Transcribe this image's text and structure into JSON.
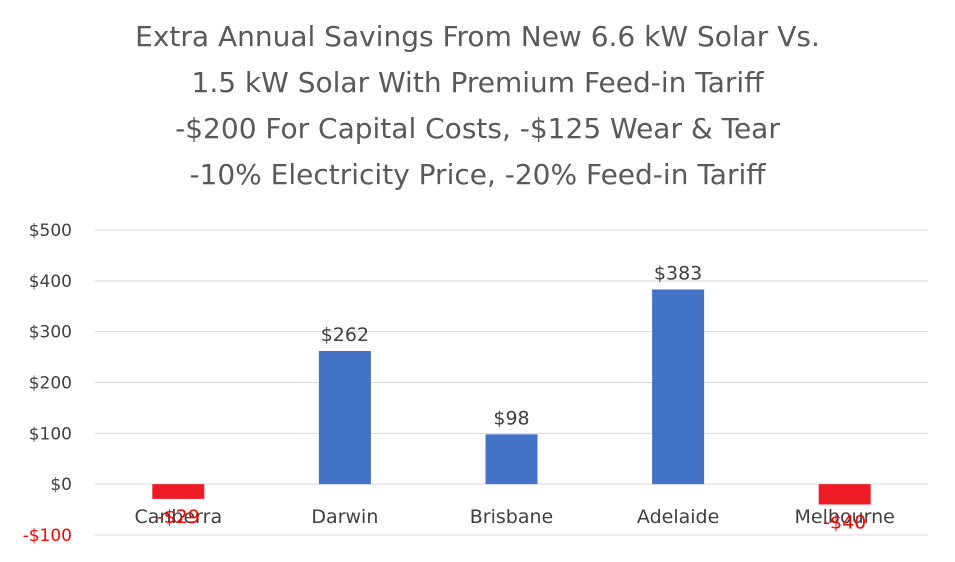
{
  "chart_data": {
    "type": "bar",
    "title_lines": [
      "Extra Annual Savings From New 6.6 kW Solar Vs.",
      "1.5 kW Solar With  Premium Feed-in Tariff",
      "-$200 For Capital Costs, -$125 Wear & Tear",
      "-10% Electricity Price, -20% Feed-in Tariff"
    ],
    "categories": [
      "Canberra",
      "Darwin",
      "Brisbane",
      "Adelaide",
      "Melbourne"
    ],
    "values": [
      -29,
      262,
      98,
      383,
      -40
    ],
    "data_labels": [
      "-$29",
      "$262",
      "$98",
      "$383",
      "-$40"
    ],
    "ylim": [
      -100,
      500
    ],
    "yticks": [
      500,
      400,
      300,
      200,
      100,
      0,
      -100
    ],
    "ytick_labels": [
      "$500",
      "$400",
      "$300",
      "$200",
      "$100",
      "$0",
      "-$100"
    ],
    "grid": true,
    "legend": "none",
    "colors": {
      "positive": "#4472C4",
      "negative": "#ED1C24",
      "negative_label": "#FF0000",
      "text": "#404040",
      "title": "#595959",
      "gridline": "#D9D9D9"
    }
  }
}
